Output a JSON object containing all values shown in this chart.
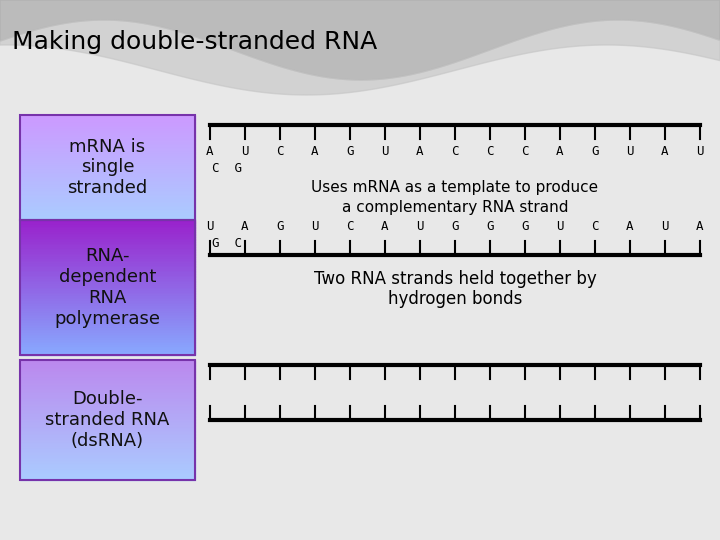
{
  "title": "Making double-stranded RNA",
  "title_fontsize": 18,
  "title_color": "#000000",
  "box1_label": "mRNA is\nsingle\nstranded",
  "box1_color_top": "#cc99ff",
  "box1_color_bot": "#aaccff",
  "box2_label": "RNA-\ndependent\nRNA\npolymerase",
  "box2_color_top": "#9922cc",
  "box2_color_bot": "#88aaff",
  "box3_label": "Double-\nstranded RNA\n(dsRNA)",
  "box3_color_top": "#bb88ee",
  "box3_color_bot": "#aaccff",
  "box_border": "#7733aa",
  "strand_top_seq": [
    "A",
    "U",
    "C",
    "A",
    "G",
    "U",
    "A",
    "C",
    "C",
    "C",
    "A",
    "G",
    "U",
    "A",
    "U"
  ],
  "strand_top_extra": "C  G",
  "strand_bot_seq": [
    "U",
    "A",
    "G",
    "U",
    "C",
    "A",
    "U",
    "G",
    "G",
    "G",
    "U",
    "C",
    "A",
    "U",
    "A"
  ],
  "strand_bot_extra": "G  C",
  "middle_text1": "Uses mRNA as a template to produce",
  "middle_text2": "a complementary RNA strand",
  "bottom_text1": "Two RNA strands held together by",
  "bottom_text2": "hydrogen bonds",
  "strand_color": "#000000",
  "num_ticks": 15,
  "bg_color": "#e8e8e8",
  "wave_color1": "#bbbbbb",
  "wave_color2": "#cccccc"
}
